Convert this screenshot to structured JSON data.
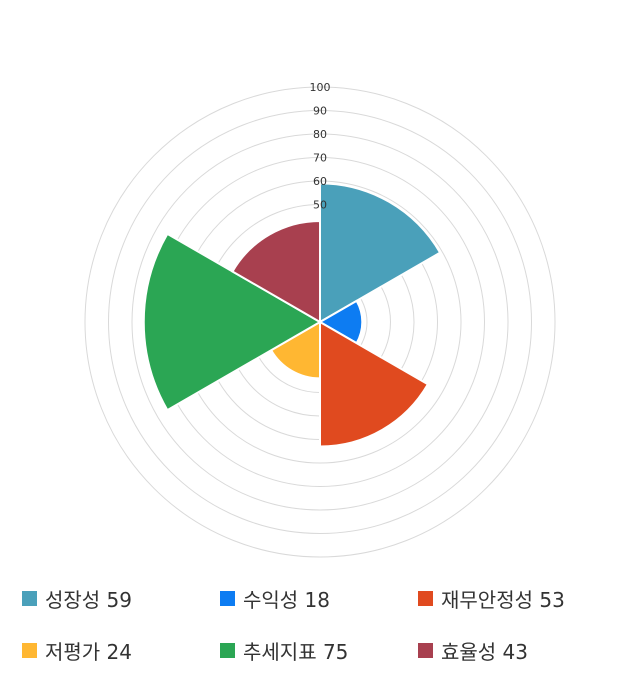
{
  "chart_data": {
    "type": "polar-area",
    "title": "",
    "rlim": [
      0,
      100
    ],
    "r_ticks": [
      "50",
      "60",
      "70",
      "80",
      "90",
      "100"
    ],
    "grid": true,
    "legend_position": "bottom",
    "categories": [
      "성장성",
      "수익성",
      "재무안정성",
      "저평가",
      "추세지표",
      "효율성"
    ],
    "values": [
      59,
      18,
      53,
      24,
      75,
      43
    ],
    "colors": [
      "#4aa0ba",
      "#0d7cf2",
      "#e04a1f",
      "#ffb732",
      "#2ba654",
      "#a8404f"
    ]
  },
  "legend": {
    "items": [
      {
        "label": "성장성 59"
      },
      {
        "label": "수익성 18"
      },
      {
        "label": "재무안정성 53"
      },
      {
        "label": "저평가 24"
      },
      {
        "label": "추세지표 75"
      },
      {
        "label": "효율성 43"
      }
    ]
  }
}
